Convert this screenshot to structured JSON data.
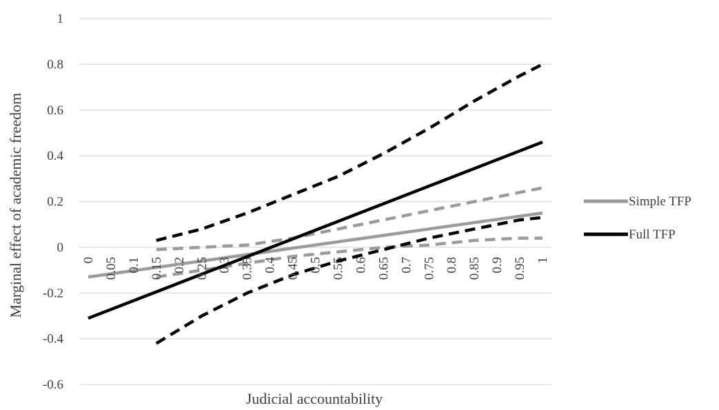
{
  "colors": {
    "simple_tfp": "#9b9b9b",
    "full_tfp": "#000000",
    "grid": "#d9d9d9",
    "text": "#404040",
    "background": "#ffffff"
  },
  "chart_data": {
    "type": "line",
    "xlabel": "Judicial accountability",
    "ylabel": "Marginal effect of academic freedom",
    "ylim": [
      -0.6,
      1
    ],
    "y_ticks": [
      "1",
      "0.8",
      "0.6",
      "0.4",
      "0.2",
      "0",
      "-0.2",
      "-0.4",
      "-0.6"
    ],
    "y_tick_values": [
      1,
      0.8,
      0.6,
      0.4,
      0.2,
      0,
      -0.2,
      -0.4,
      -0.6
    ],
    "categories": [
      "0",
      "0.05",
      "0.1",
      "0.15",
      "0.2",
      "0.25",
      "0.3",
      "0.35",
      "0.4",
      "0.45",
      "0.5",
      "0.55",
      "0.6",
      "0.65",
      "0.7",
      "0.75",
      "0.8",
      "0.85",
      "0.9",
      "0.95",
      "1"
    ],
    "x": [
      0,
      0.05,
      0.1,
      0.15,
      0.2,
      0.25,
      0.3,
      0.35,
      0.4,
      0.45,
      0.5,
      0.55,
      0.6,
      0.65,
      0.7,
      0.75,
      0.8,
      0.85,
      0.9,
      0.95,
      1
    ],
    "grid": true,
    "legend_position": "right",
    "series": [
      {
        "name": "Simple TFP",
        "style": "solid",
        "color_key": "simple_tfp",
        "x": [
          0,
          1
        ],
        "values": [
          -0.13,
          0.15
        ]
      },
      {
        "style": "dashed",
        "color_key": "simple_tfp",
        "role": "upper bound",
        "x": [
          0.15,
          0.25,
          0.35,
          0.45,
          0.55,
          0.65,
          0.75,
          0.85,
          0.95,
          1
        ],
        "values": [
          -0.01,
          0.0,
          0.01,
          0.04,
          0.08,
          0.12,
          0.16,
          0.2,
          0.24,
          0.26
        ]
      },
      {
        "style": "dashed",
        "color_key": "simple_tfp",
        "role": "lower bound",
        "x": [
          0.15,
          0.25,
          0.35,
          0.45,
          0.55,
          0.65,
          0.75,
          0.85,
          0.95,
          1
        ],
        "values": [
          -0.13,
          -0.1,
          -0.07,
          -0.04,
          -0.02,
          0.0,
          0.01,
          0.03,
          0.04,
          0.04
        ]
      },
      {
        "name": "Full TFP",
        "style": "solid",
        "color_key": "full_tfp",
        "x": [
          0,
          1
        ],
        "values": [
          -0.31,
          0.46
        ]
      },
      {
        "style": "dashed",
        "color_key": "full_tfp",
        "role": "upper bound",
        "x": [
          0.15,
          0.25,
          0.35,
          0.4,
          0.45,
          0.55,
          0.65,
          0.75,
          0.85,
          0.95,
          1
        ],
        "values": [
          0.03,
          0.08,
          0.15,
          0.19,
          0.23,
          0.31,
          0.41,
          0.52,
          0.64,
          0.75,
          0.8
        ]
      },
      {
        "style": "dashed",
        "color_key": "full_tfp",
        "role": "lower bound",
        "x": [
          0.15,
          0.25,
          0.35,
          0.4,
          0.45,
          0.55,
          0.65,
          0.75,
          0.85,
          0.95,
          1
        ],
        "values": [
          -0.42,
          -0.3,
          -0.2,
          -0.16,
          -0.12,
          -0.06,
          -0.01,
          0.04,
          0.08,
          0.12,
          0.13
        ]
      }
    ],
    "legend": [
      {
        "label": "Simple TFP",
        "color_key": "simple_tfp"
      },
      {
        "label": "Full TFP",
        "color_key": "full_tfp"
      }
    ]
  }
}
